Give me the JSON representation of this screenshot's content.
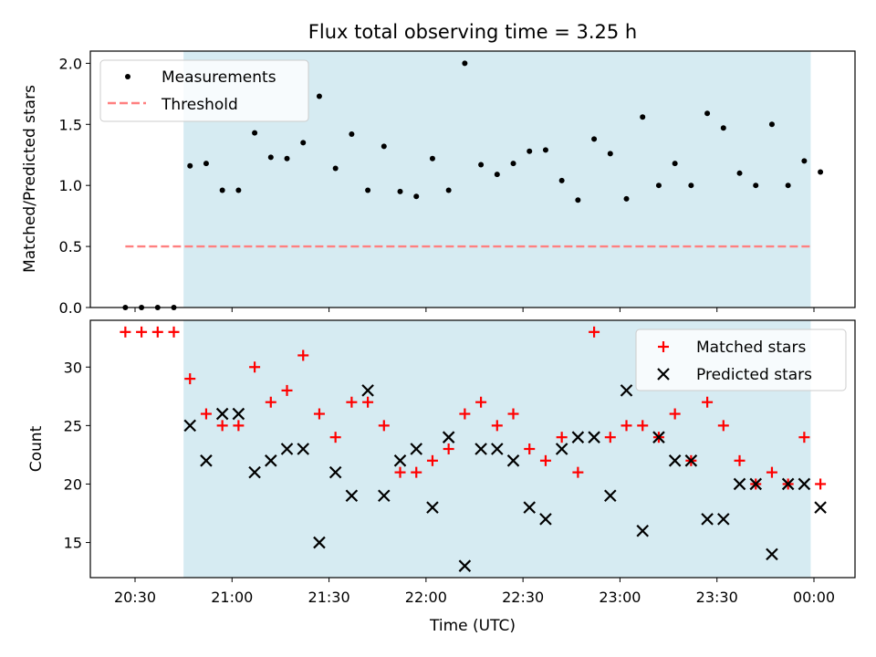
{
  "chart_data": [
    {
      "type": "scatter",
      "title": "Flux total observing time = 3.25 h",
      "xlabel": "",
      "ylabel": "Matched/Predicted stars",
      "ylim": [
        0,
        2.1
      ],
      "yticks": [
        "0.0",
        "0.5",
        "1.0",
        "1.5",
        "2.0"
      ],
      "ytick_values": [
        0,
        0.5,
        1.0,
        1.5,
        2.0
      ],
      "legend_position": "top-left",
      "observing_window": [
        "20:45",
        "23:59"
      ],
      "series": [
        {
          "name": "Measurements",
          "color": "#000000",
          "marker": "dot",
          "x": [
            "20:27",
            "20:32",
            "20:37",
            "20:42",
            "20:47",
            "20:52",
            "20:57",
            "21:02",
            "21:07",
            "21:12",
            "21:17",
            "21:22",
            "21:27",
            "21:32",
            "21:37",
            "21:42",
            "21:47",
            "21:52",
            "21:57",
            "22:02",
            "22:07",
            "22:12",
            "22:17",
            "22:22",
            "22:27",
            "22:32",
            "22:37",
            "22:42",
            "22:47",
            "22:52",
            "22:57",
            "23:02",
            "23:07",
            "23:12",
            "23:17",
            "23:22",
            "23:27",
            "23:32",
            "23:37",
            "23:42",
            "23:47",
            "23:52",
            "23:57",
            "00:02"
          ],
          "y": [
            0,
            0,
            0,
            0,
            1.16,
            1.18,
            0.96,
            0.96,
            1.43,
            1.23,
            1.22,
            1.35,
            1.73,
            1.14,
            1.42,
            0.96,
            1.32,
            0.95,
            0.91,
            1.22,
            0.96,
            2.0,
            1.17,
            1.09,
            1.18,
            1.28,
            1.29,
            1.04,
            0.88,
            1.38,
            1.26,
            0.89,
            1.56,
            1.0,
            1.18,
            1.0,
            1.59,
            1.47,
            1.1,
            1.0,
            1.5,
            1.0,
            1.2,
            1.11
          ]
        },
        {
          "name": "Threshold",
          "color": "#ff8080",
          "style": "dashed",
          "x": [
            "20:27",
            "23:59"
          ],
          "y": [
            0.5,
            0.5
          ]
        }
      ]
    },
    {
      "type": "scatter",
      "title": "",
      "xlabel": "Time (UTC)",
      "ylabel": "Count",
      "ylim": [
        12,
        34
      ],
      "yticks": [
        "15",
        "20",
        "25",
        "30"
      ],
      "ytick_values": [
        15,
        20,
        25,
        30
      ],
      "xticks": [
        "20:30",
        "21:00",
        "21:30",
        "22:00",
        "22:30",
        "23:00",
        "23:30",
        "00:00"
      ],
      "legend_position": "top-right",
      "observing_window": [
        "20:45",
        "23:59"
      ],
      "series": [
        {
          "name": "Matched stars",
          "color": "#ff0000",
          "marker": "plus",
          "x": [
            "20:27",
            "20:32",
            "20:37",
            "20:42",
            "20:47",
            "20:52",
            "20:57",
            "21:02",
            "21:07",
            "21:12",
            "21:17",
            "21:22",
            "21:27",
            "21:32",
            "21:37",
            "21:42",
            "21:47",
            "21:52",
            "21:57",
            "22:02",
            "22:07",
            "22:12",
            "22:17",
            "22:22",
            "22:27",
            "22:32",
            "22:37",
            "22:42",
            "22:47",
            "22:52",
            "22:57",
            "23:02",
            "23:07",
            "23:12",
            "23:17",
            "23:22",
            "23:27",
            "23:32",
            "23:37",
            "23:42",
            "23:47",
            "23:52",
            "23:57",
            "00:02"
          ],
          "y": [
            33,
            33,
            33,
            33,
            29,
            26,
            25,
            25,
            30,
            27,
            28,
            31,
            26,
            24,
            27,
            27,
            25,
            21,
            21,
            22,
            23,
            26,
            27,
            25,
            26,
            23,
            22,
            24,
            21,
            33,
            24,
            25,
            25,
            24,
            26,
            22,
            27,
            25,
            22,
            20,
            21,
            20,
            24,
            20
          ]
        },
        {
          "name": "Predicted stars",
          "color": "#000000",
          "marker": "x",
          "x": [
            "20:47",
            "20:52",
            "20:57",
            "21:02",
            "21:07",
            "21:12",
            "21:17",
            "21:22",
            "21:27",
            "21:32",
            "21:37",
            "21:42",
            "21:47",
            "21:52",
            "21:57",
            "22:02",
            "22:07",
            "22:12",
            "22:17",
            "22:22",
            "22:27",
            "22:32",
            "22:37",
            "22:42",
            "22:47",
            "22:52",
            "22:57",
            "23:02",
            "23:07",
            "23:12",
            "23:17",
            "23:22",
            "23:27",
            "23:32",
            "23:37",
            "23:42",
            "23:47",
            "23:52",
            "23:57",
            "00:02"
          ],
          "y": [
            25,
            22,
            26,
            26,
            21,
            22,
            23,
            23,
            15,
            21,
            19,
            28,
            19,
            22,
            23,
            18,
            24,
            13,
            23,
            23,
            22,
            18,
            17,
            23,
            24,
            24,
            19,
            28,
            16,
            24,
            22,
            22,
            17,
            17,
            20,
            20,
            14,
            20,
            20,
            18
          ]
        }
      ]
    }
  ]
}
